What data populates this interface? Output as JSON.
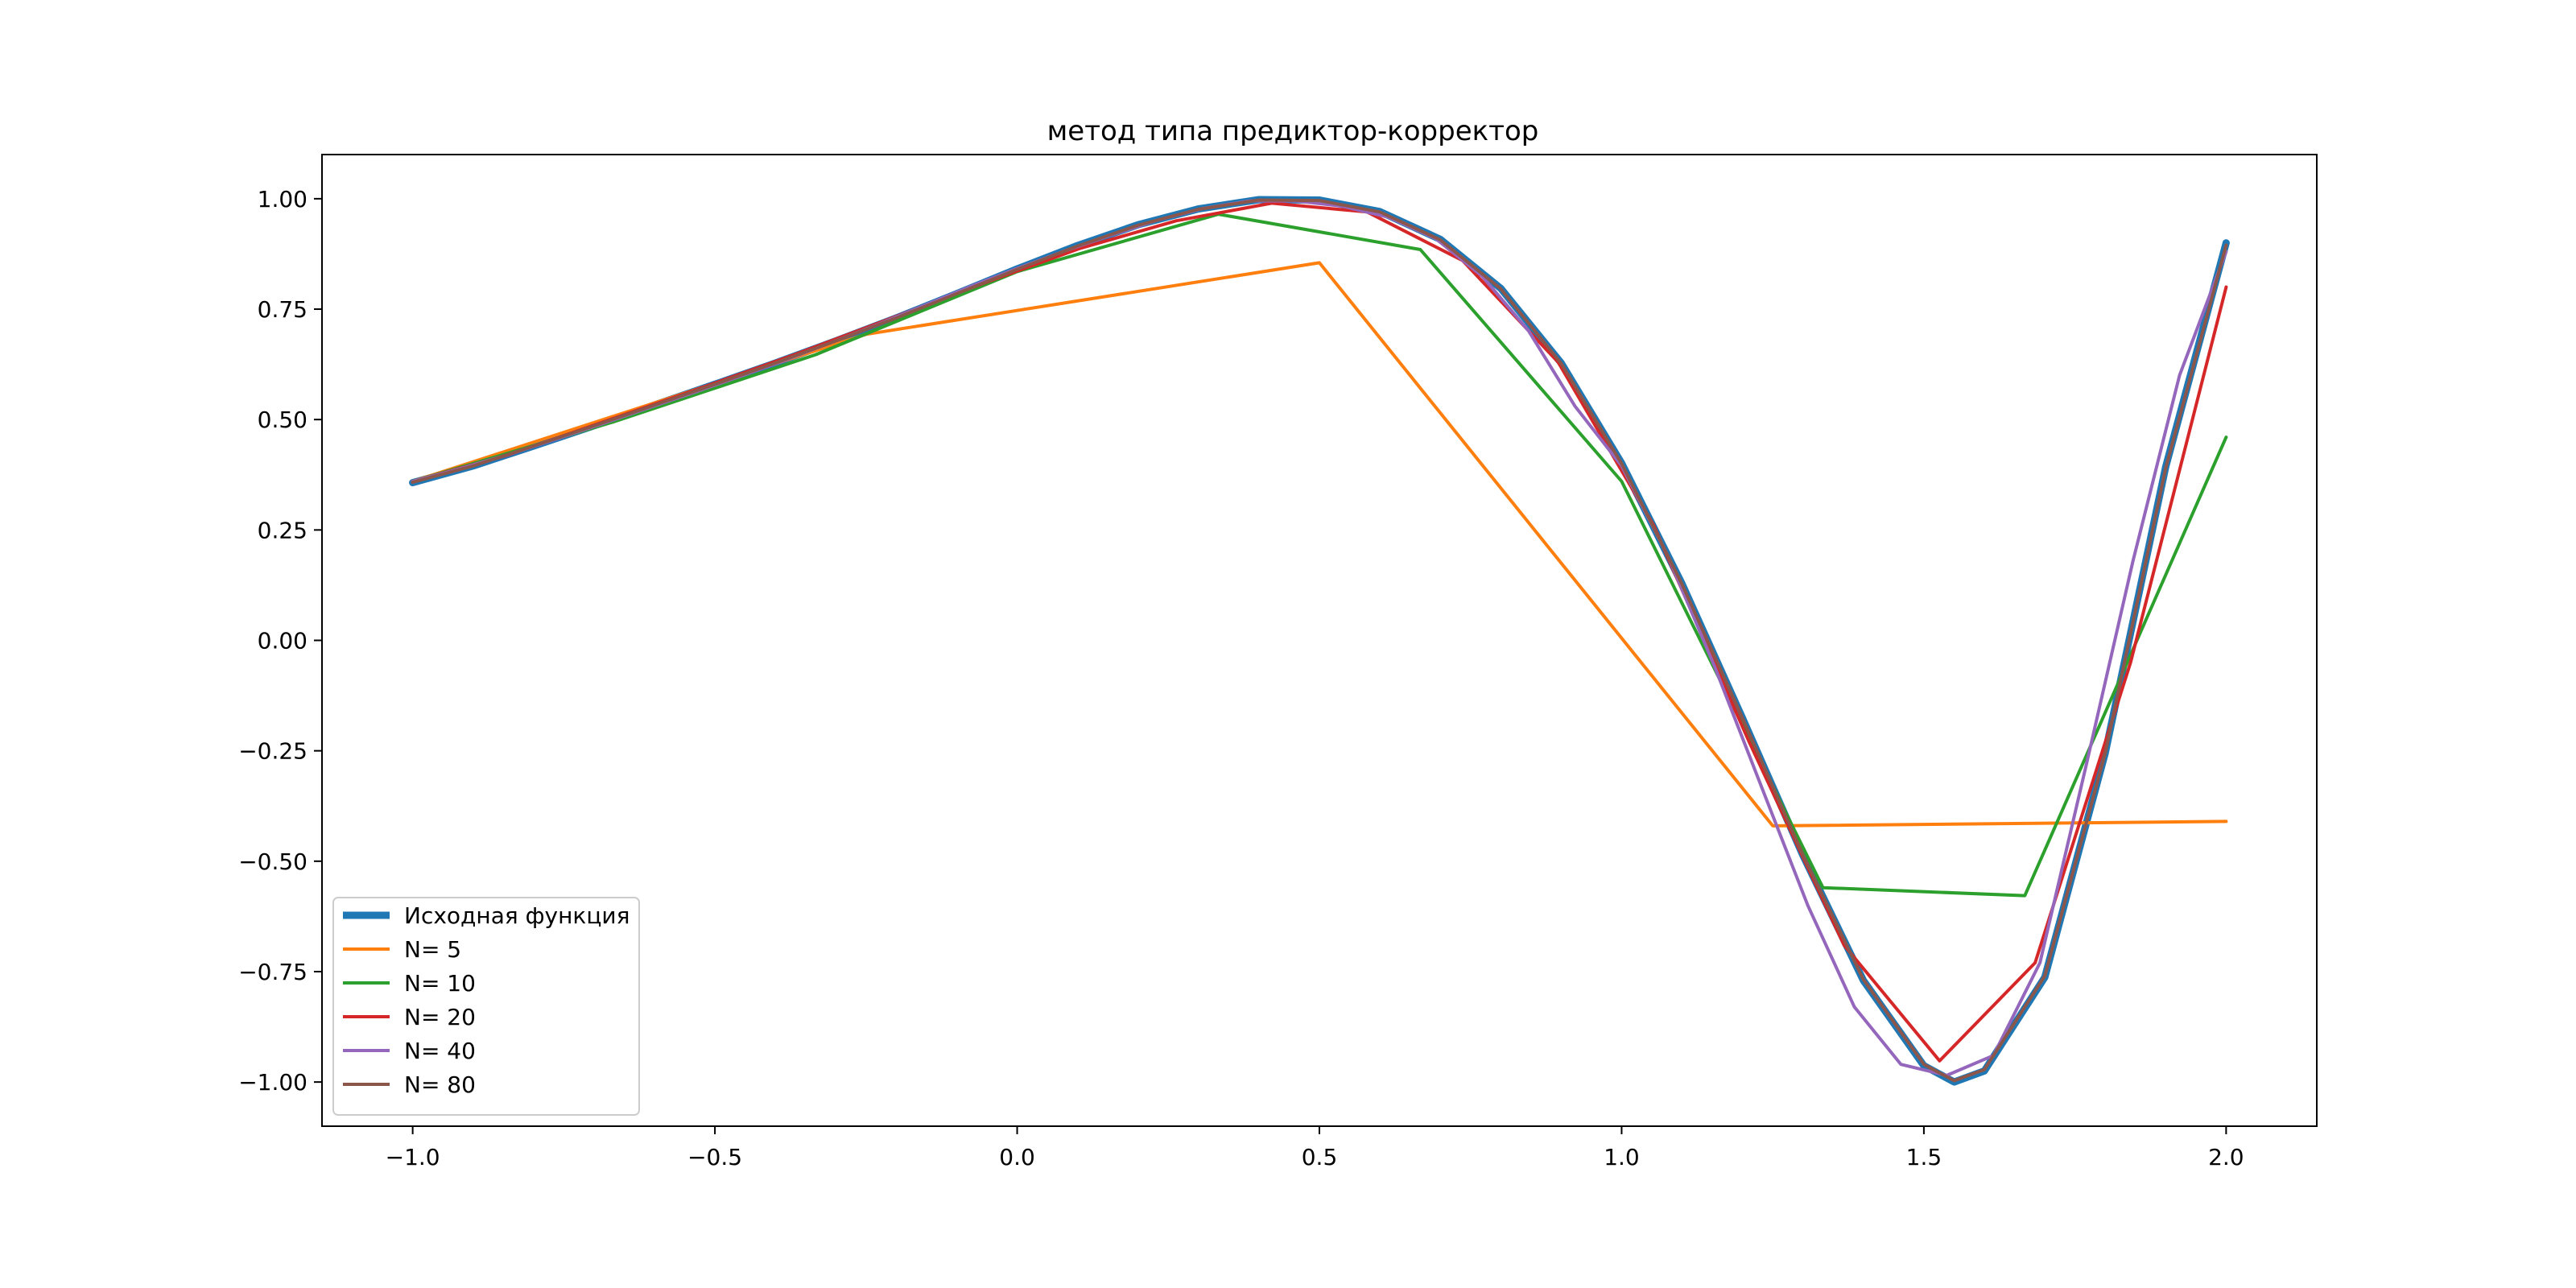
{
  "chart_data": {
    "type": "line",
    "title": "метод типа предиктор-корректор",
    "xlabel": "",
    "ylabel": "",
    "xlim": [
      -1.15,
      2.15
    ],
    "ylim": [
      -1.1,
      1.1
    ],
    "x_ticks": [
      -1.0,
      -0.5,
      0.0,
      0.5,
      1.0,
      1.5,
      2.0
    ],
    "x_tick_labels": [
      "−1.0",
      "−0.5",
      "0.0",
      "0.5",
      "1.0",
      "1.5",
      "2.0"
    ],
    "y_ticks": [
      1.0,
      0.75,
      0.5,
      0.25,
      0.0,
      -0.25,
      -0.5,
      -0.75,
      -1.0
    ],
    "y_tick_labels": [
      "1.00",
      "0.75",
      "0.50",
      "0.25",
      "0.00",
      "−0.25",
      "−0.50",
      "−0.75",
      "−1.00"
    ],
    "grid": false,
    "legend_position": "bottom-left",
    "series": [
      {
        "name": "Исходная функция",
        "color": "#1f77b4",
        "style": "thick",
        "x": [
          -1.0,
          -0.9,
          -0.8,
          -0.7,
          -0.6,
          -0.5,
          -0.4,
          -0.3,
          -0.2,
          -0.1,
          0.0,
          0.1,
          0.2,
          0.3,
          0.4,
          0.5,
          0.6,
          0.7,
          0.8,
          0.9,
          1.0,
          1.1,
          1.2,
          1.3,
          1.4,
          1.5,
          1.55,
          1.6,
          1.7,
          1.8,
          1.9,
          2.0
        ],
        "y": [
          0.357,
          0.395,
          0.44,
          0.486,
          0.533,
          0.58,
          0.628,
          0.678,
          0.73,
          0.785,
          0.841,
          0.894,
          0.941,
          0.977,
          0.998,
          0.997,
          0.971,
          0.908,
          0.797,
          0.628,
          0.401,
          0.128,
          -0.176,
          -0.487,
          -0.77,
          -0.963,
          -1.0,
          -0.975,
          -0.763,
          -0.255,
          0.393,
          0.9
        ]
      },
      {
        "name": "N= 5",
        "color": "#ff7f0e",
        "style": "normal",
        "x": [
          -1.0,
          -0.25,
          0.5,
          1.25,
          2.0
        ],
        "y": [
          0.36,
          0.693,
          0.855,
          -0.42,
          -0.41
        ]
      },
      {
        "name": "N= 10",
        "color": "#2ca02c",
        "style": "normal",
        "x": [
          -1.0,
          -0.667,
          -0.333,
          0.0,
          0.333,
          0.667,
          1.0,
          1.333,
          1.667,
          2.0
        ],
        "y": [
          0.36,
          0.495,
          0.647,
          0.835,
          0.965,
          0.885,
          0.36,
          -0.56,
          -0.578,
          0.46
        ]
      },
      {
        "name": "N= 20",
        "color": "#d62728",
        "style": "normal",
        "x": [
          -1.0,
          -0.842,
          -0.684,
          -0.526,
          -0.368,
          -0.211,
          -0.053,
          0.105,
          0.263,
          0.421,
          0.579,
          0.737,
          0.895,
          1.053,
          1.211,
          1.368,
          1.526,
          1.684,
          1.842,
          2.0
        ],
        "y": [
          0.36,
          0.42,
          0.495,
          0.57,
          0.647,
          0.728,
          0.81,
          0.888,
          0.95,
          0.99,
          0.97,
          0.86,
          0.63,
          0.26,
          -0.23,
          -0.69,
          -0.952,
          -0.73,
          -0.05,
          0.8
        ]
      },
      {
        "name": "N= 40",
        "color": "#9467bd",
        "style": "normal",
        "x": [
          -1.0,
          -0.923,
          -0.846,
          -0.769,
          -0.692,
          -0.615,
          -0.538,
          -0.462,
          -0.385,
          -0.308,
          -0.231,
          -0.154,
          -0.077,
          0.0,
          0.077,
          0.154,
          0.231,
          0.308,
          0.385,
          0.462,
          0.538,
          0.615,
          0.692,
          0.769,
          0.846,
          0.923,
          1.0,
          1.077,
          1.154,
          1.231,
          1.308,
          1.385,
          1.462,
          1.538,
          1.615,
          1.692,
          1.769,
          1.846,
          1.923,
          2.0
        ],
        "y": [
          0.36,
          0.388,
          0.419,
          0.453,
          0.488,
          0.524,
          0.56,
          0.596,
          0.634,
          0.674,
          0.715,
          0.758,
          0.801,
          0.842,
          0.881,
          0.917,
          0.951,
          0.978,
          0.995,
          0.995,
          0.983,
          0.958,
          0.91,
          0.825,
          0.701,
          0.53,
          0.395,
          0.19,
          -0.06,
          -0.33,
          -0.6,
          -0.83,
          -0.96,
          -0.985,
          -0.94,
          -0.73,
          -0.28,
          0.18,
          0.6,
          0.88
        ]
      },
      {
        "name": "N= 80",
        "color": "#8c564b",
        "style": "normal",
        "x": [
          -1.0,
          -0.9,
          -0.8,
          -0.7,
          -0.6,
          -0.5,
          -0.4,
          -0.3,
          -0.2,
          -0.1,
          0.0,
          0.1,
          0.2,
          0.3,
          0.4,
          0.5,
          0.6,
          0.7,
          0.8,
          0.9,
          1.0,
          1.1,
          1.2,
          1.3,
          1.4,
          1.5,
          1.55,
          1.6,
          1.7,
          1.8,
          1.9,
          2.0
        ],
        "y": [
          0.358,
          0.395,
          0.44,
          0.486,
          0.533,
          0.58,
          0.628,
          0.678,
          0.73,
          0.785,
          0.84,
          0.893,
          0.94,
          0.976,
          0.997,
          0.996,
          0.97,
          0.907,
          0.796,
          0.627,
          0.4,
          0.127,
          -0.176,
          -0.486,
          -0.768,
          -0.96,
          -0.997,
          -0.972,
          -0.76,
          -0.255,
          0.39,
          0.895
        ]
      }
    ]
  }
}
